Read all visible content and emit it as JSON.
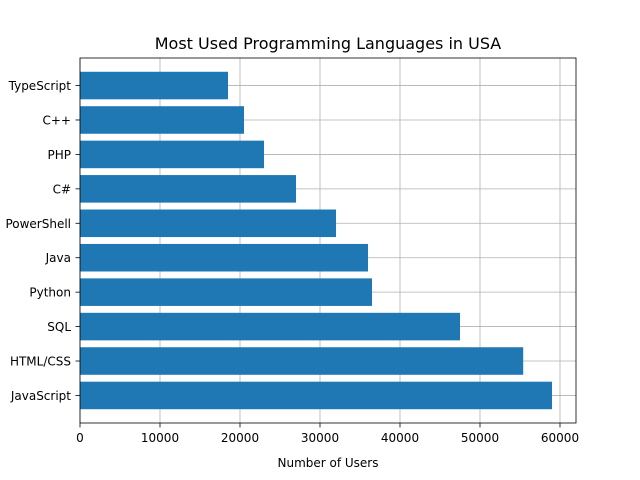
{
  "chart_data": {
    "type": "bar",
    "orientation": "horizontal",
    "title": "Most Used Programming Languages in USA",
    "xlabel": "Number of Users",
    "ylabel": "",
    "xlim": [
      0,
      62000
    ],
    "xticks": [
      0,
      10000,
      20000,
      30000,
      40000,
      50000,
      60000
    ],
    "grid": true,
    "bar_color": "#1f77b4",
    "categories": [
      "JavaScript",
      "HTML/CSS",
      "SQL",
      "Python",
      "Java",
      "PowerShell",
      "C#",
      "PHP",
      "C++",
      "TypeScript"
    ],
    "values": [
      59000,
      55400,
      47500,
      36500,
      36000,
      32000,
      27000,
      23000,
      20500,
      18500
    ]
  }
}
